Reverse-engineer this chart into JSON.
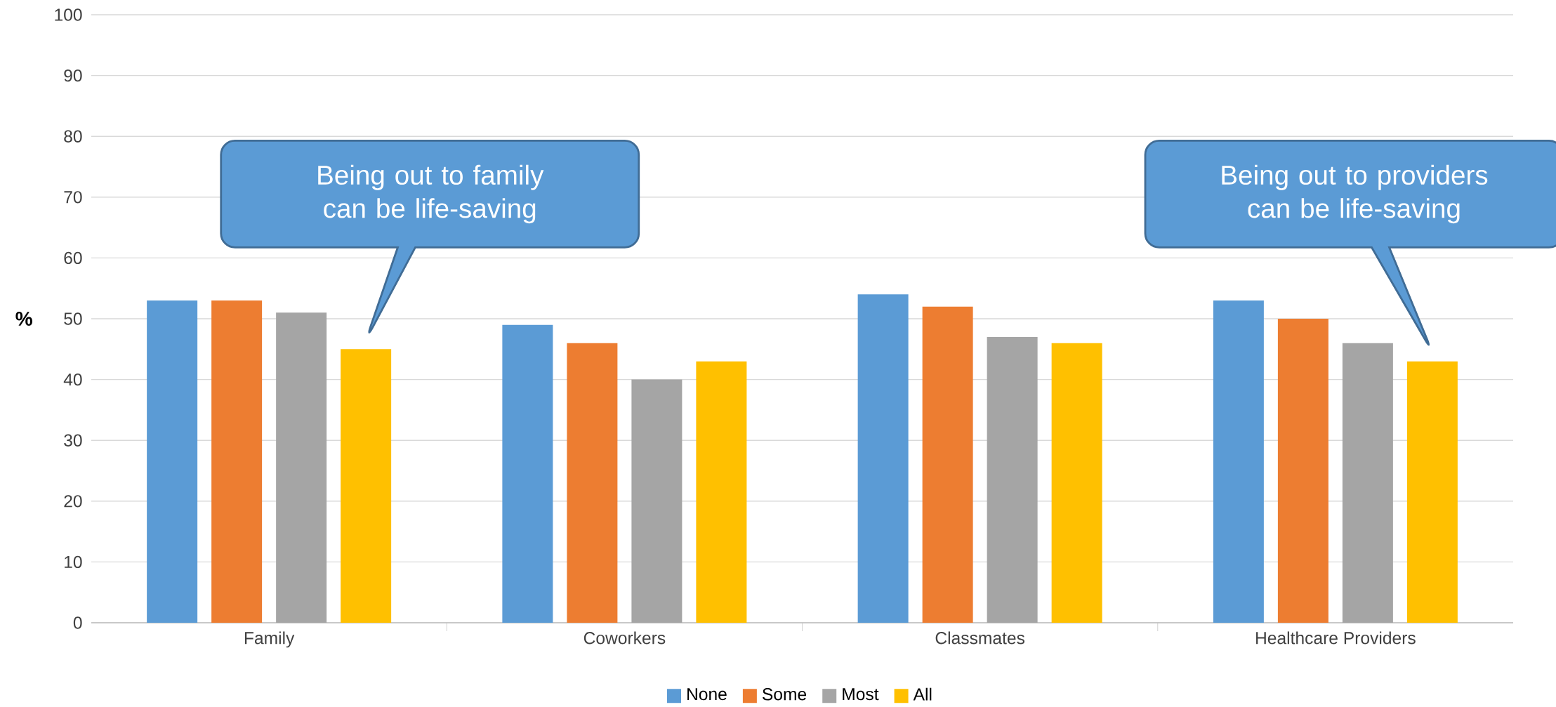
{
  "chart_data": {
    "type": "bar",
    "ylabel": "%",
    "categories": [
      "Family",
      "Coworkers",
      "Classmates",
      "Healthcare Providers"
    ],
    "series": [
      {
        "name": "None",
        "color": "#5b9bd5",
        "values": [
          53,
          49,
          54,
          53
        ]
      },
      {
        "name": "Some",
        "color": "#ed7d31",
        "values": [
          53,
          46,
          52,
          50
        ]
      },
      {
        "name": "Most",
        "color": "#a5a5a5",
        "values": [
          51,
          40,
          47,
          46
        ]
      },
      {
        "name": "All",
        "color": "#ffc000",
        "values": [
          45,
          43,
          46,
          43
        ]
      }
    ],
    "ylim": [
      0,
      100
    ],
    "yticks": [
      0,
      10,
      20,
      30,
      40,
      50,
      60,
      70,
      80,
      90,
      100
    ],
    "grid": "y",
    "legend": "bottom",
    "annotations": [
      "Being out to family can be life-saving",
      "Being out to providers can be life-saving"
    ]
  }
}
